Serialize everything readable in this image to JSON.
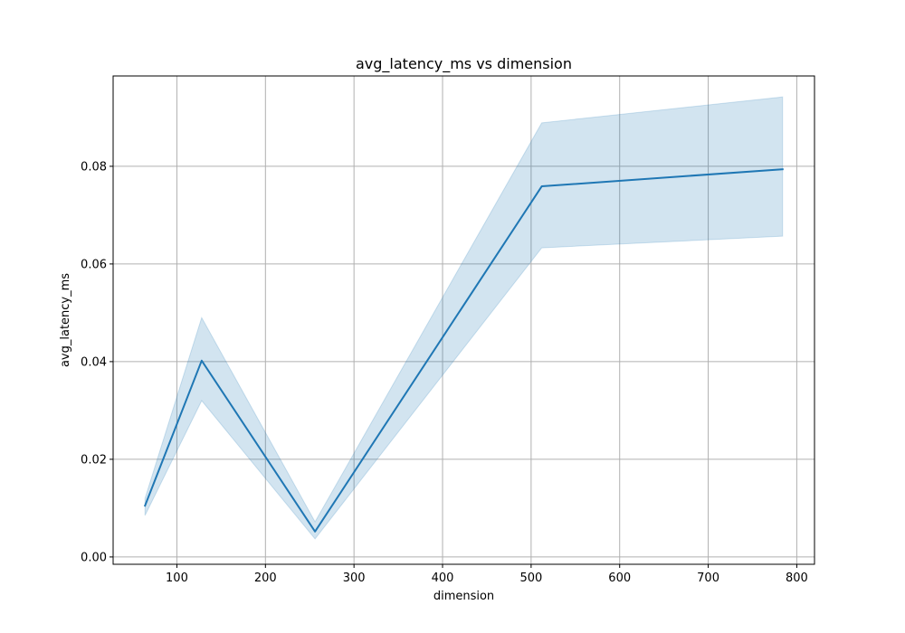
{
  "chart_data": {
    "type": "line",
    "title": "avg_latency_ms vs dimension",
    "xlabel": "dimension",
    "ylabel": "avg_latency_ms",
    "xlim": [
      28,
      820
    ],
    "ylim": [
      -0.0015,
      0.0985
    ],
    "x_ticks": [
      100,
      200,
      300,
      400,
      500,
      600,
      700,
      800
    ],
    "y_ticks": [
      0.0,
      0.02,
      0.04,
      0.06,
      0.08
    ],
    "y_tick_labels": [
      "0.00",
      "0.02",
      "0.04",
      "0.06",
      "0.08"
    ],
    "grid": true,
    "colors": {
      "line": "#1f77b4",
      "band": "#1f77b4",
      "grid": "#b0b0b0"
    },
    "series": [
      {
        "x": [
          64,
          128,
          256,
          512,
          784
        ],
        "values": [
          0.0105,
          0.0402,
          0.0052,
          0.0759,
          0.0794
        ],
        "ci_lower": [
          0.0085,
          0.032,
          0.0037,
          0.0633,
          0.0657
        ],
        "ci_upper": [
          0.012,
          0.049,
          0.0072,
          0.0889,
          0.0942
        ]
      }
    ]
  }
}
